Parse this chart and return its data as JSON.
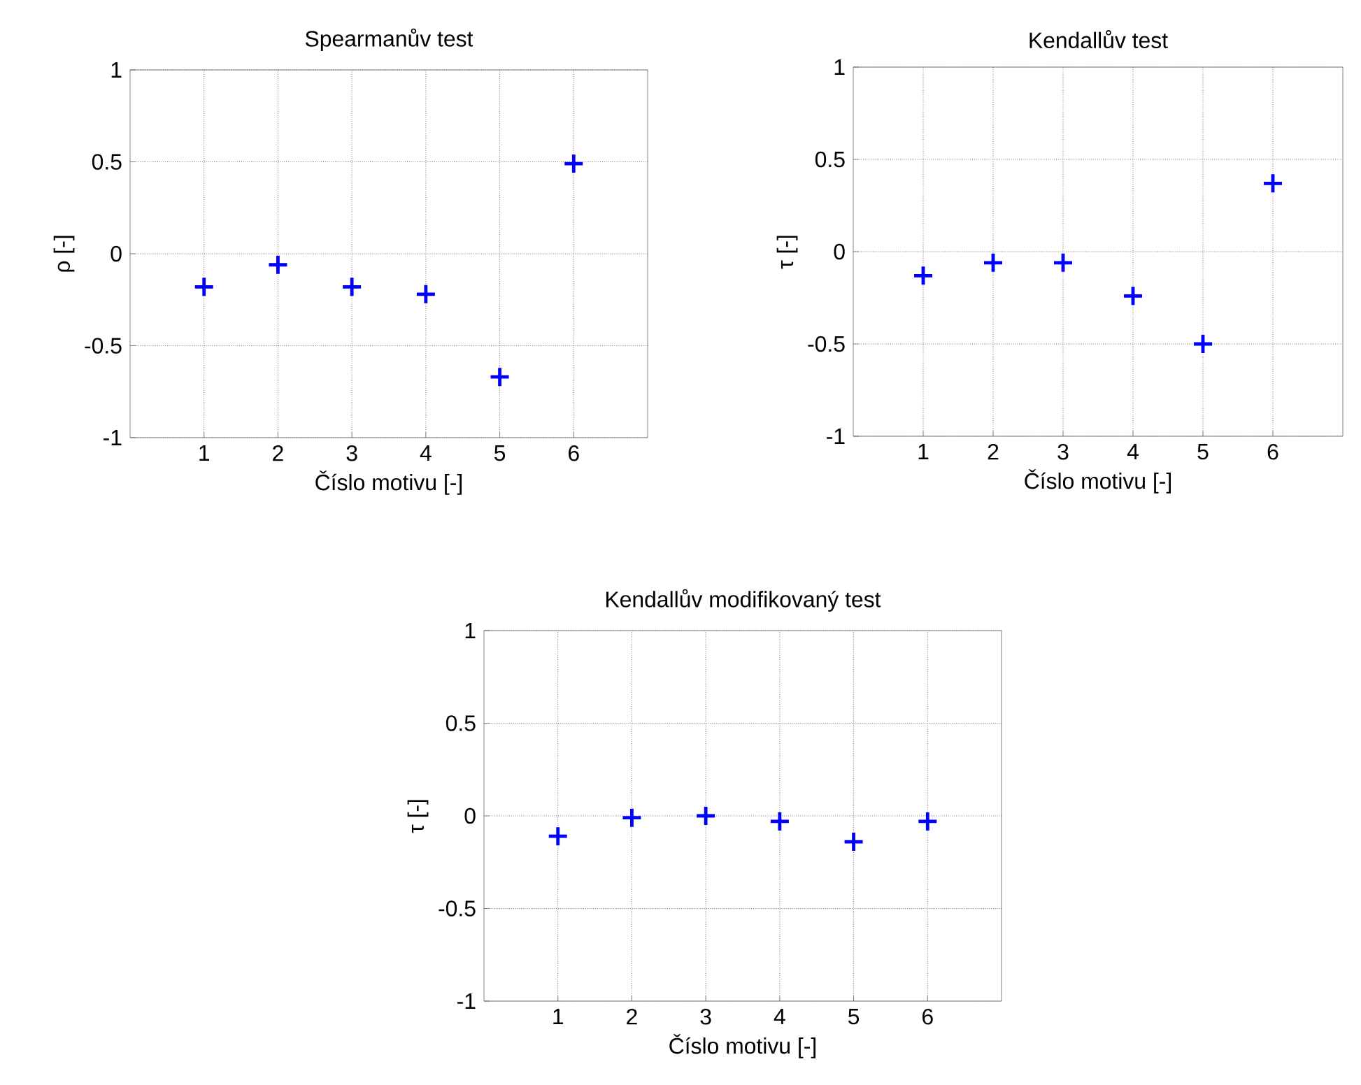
{
  "chart_data": [
    {
      "type": "scatter",
      "title": "Spearmanův test",
      "xlabel": "Číslo motivu [-]",
      "ylabel": "ρ [-]",
      "x": [
        1,
        2,
        3,
        4,
        5,
        6
      ],
      "series": [
        {
          "color": "#0000ff",
          "values": [
            -0.18,
            -0.06,
            -0.18,
            -0.22,
            -0.67,
            0.49
          ]
        }
      ],
      "xlim": [
        0,
        7
      ],
      "ylim": [
        -1,
        1
      ],
      "xticks": [
        1,
        2,
        3,
        4,
        5,
        6
      ],
      "yticks": [
        -1,
        -0.5,
        0,
        0.5,
        1
      ],
      "grid": true,
      "marker": "cross"
    },
    {
      "type": "scatter",
      "title": "Kendallův test",
      "xlabel": "Číslo motivu [-]",
      "ylabel": "τ [-]",
      "x": [
        1,
        2,
        3,
        4,
        5,
        6
      ],
      "series": [
        {
          "color": "#0000ff",
          "values": [
            -0.13,
            -0.06,
            -0.06,
            -0.24,
            -0.5,
            0.37
          ]
        }
      ],
      "xlim": [
        0,
        7
      ],
      "ylim": [
        -1,
        1
      ],
      "xticks": [
        1,
        2,
        3,
        4,
        5,
        6
      ],
      "yticks": [
        -1,
        -0.5,
        0,
        0.5,
        1
      ],
      "grid": true,
      "marker": "cross"
    },
    {
      "type": "scatter",
      "title": "Kendallův modifikovaný test",
      "xlabel": "Číslo motivu [-]",
      "ylabel": "τ [-]",
      "x": [
        1,
        2,
        3,
        4,
        5,
        6
      ],
      "series": [
        {
          "color": "#0000ff",
          "values": [
            -0.11,
            -0.01,
            0.0,
            -0.03,
            -0.14,
            -0.03
          ]
        }
      ],
      "xlim": [
        0,
        7
      ],
      "ylim": [
        -1,
        1
      ],
      "xticks": [
        1,
        2,
        3,
        4,
        5,
        6
      ],
      "yticks": [
        -1,
        -0.5,
        0,
        0.5,
        1
      ],
      "grid": true,
      "marker": "cross"
    }
  ]
}
